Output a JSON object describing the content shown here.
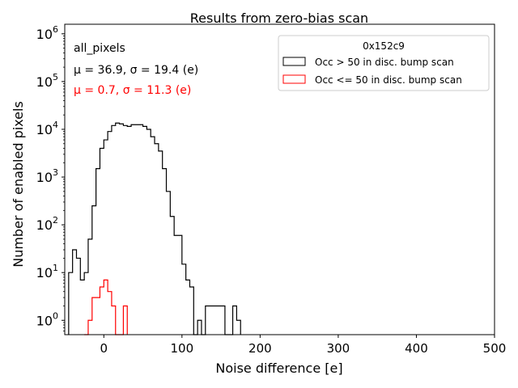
{
  "chart_data": {
    "type": "histogram",
    "title": "Results from zero-bias scan",
    "xlabel": "Noise difference [e]",
    "ylabel": "Number of enabled pixels",
    "xlim": [
      -50,
      500
    ],
    "ylim_log10": [
      -0.3,
      6.2
    ],
    "yscale": "log",
    "x_ticks": [
      0,
      100,
      200,
      300,
      400,
      500
    ],
    "y_ticks": [
      {
        "base": "10",
        "exp": "0",
        "value": 1
      },
      {
        "base": "10",
        "exp": "1",
        "value": 10
      },
      {
        "base": "10",
        "exp": "2",
        "value": 100
      },
      {
        "base": "10",
        "exp": "3",
        "value": 1000
      },
      {
        "base": "10",
        "exp": "4",
        "value": 10000
      },
      {
        "base": "10",
        "exp": "5",
        "value": 100000
      },
      {
        "base": "10",
        "exp": "6",
        "value": 1000000
      }
    ],
    "bin_width": 5,
    "annotations": [
      {
        "text": "all_pixels",
        "color": "#000000"
      },
      {
        "text": "μ = 36.9, σ = 19.4 (e)",
        "color": "#000000"
      },
      {
        "text": "μ = 0.7, σ = 11.3 (e)",
        "color": "#ff0000"
      }
    ],
    "legend": {
      "title": "0x152c9",
      "position": "top-right",
      "entries": [
        {
          "label": "Occ > 50 in disc. bump scan",
          "color": "#000000"
        },
        {
          "label": "Occ <= 50 in disc. bump scan",
          "color": "#ff0000"
        }
      ]
    },
    "series": [
      {
        "name": "Occ > 50 in disc. bump scan",
        "color": "#000000",
        "bins": [
          {
            "x": -45,
            "v": 10
          },
          {
            "x": -40,
            "v": 30
          },
          {
            "x": -35,
            "v": 20
          },
          {
            "x": -30,
            "v": 7
          },
          {
            "x": -25,
            "v": 10
          },
          {
            "x": -20,
            "v": 50
          },
          {
            "x": -15,
            "v": 250
          },
          {
            "x": -10,
            "v": 1500
          },
          {
            "x": -5,
            "v": 4000
          },
          {
            "x": 0,
            "v": 6000
          },
          {
            "x": 5,
            "v": 9000
          },
          {
            "x": 10,
            "v": 12000
          },
          {
            "x": 15,
            "v": 13500
          },
          {
            "x": 20,
            "v": 13000
          },
          {
            "x": 25,
            "v": 12000
          },
          {
            "x": 30,
            "v": 11500
          },
          {
            "x": 35,
            "v": 12500
          },
          {
            "x": 40,
            "v": 12500
          },
          {
            "x": 45,
            "v": 12500
          },
          {
            "x": 50,
            "v": 11500
          },
          {
            "x": 55,
            "v": 10000
          },
          {
            "x": 60,
            "v": 7000
          },
          {
            "x": 65,
            "v": 5000
          },
          {
            "x": 70,
            "v": 3500
          },
          {
            "x": 75,
            "v": 1500
          },
          {
            "x": 80,
            "v": 500
          },
          {
            "x": 85,
            "v": 150
          },
          {
            "x": 90,
            "v": 60
          },
          {
            "x": 95,
            "v": 60
          },
          {
            "x": 100,
            "v": 15
          },
          {
            "x": 105,
            "v": 7
          },
          {
            "x": 110,
            "v": 5
          },
          {
            "x": 115,
            "v": 0
          },
          {
            "x": 120,
            "v": 1
          },
          {
            "x": 125,
            "v": 0
          },
          {
            "x": 130,
            "v": 2
          },
          {
            "x": 135,
            "v": 2
          },
          {
            "x": 140,
            "v": 2
          },
          {
            "x": 145,
            "v": 2
          },
          {
            "x": 150,
            "v": 2
          },
          {
            "x": 155,
            "v": 0
          },
          {
            "x": 160,
            "v": 0
          },
          {
            "x": 165,
            "v": 2
          },
          {
            "x": 170,
            "v": 1
          }
        ]
      },
      {
        "name": "Occ <= 50 in disc. bump scan",
        "color": "#ff0000",
        "bins": [
          {
            "x": -25,
            "v": 0
          },
          {
            "x": -20,
            "v": 1
          },
          {
            "x": -15,
            "v": 3
          },
          {
            "x": -10,
            "v": 3
          },
          {
            "x": -5,
            "v": 5
          },
          {
            "x": 0,
            "v": 7
          },
          {
            "x": 5,
            "v": 4
          },
          {
            "x": 10,
            "v": 2
          },
          {
            "x": 15,
            "v": 0
          },
          {
            "x": 20,
            "v": 0
          },
          {
            "x": 25,
            "v": 2
          }
        ]
      }
    ]
  }
}
